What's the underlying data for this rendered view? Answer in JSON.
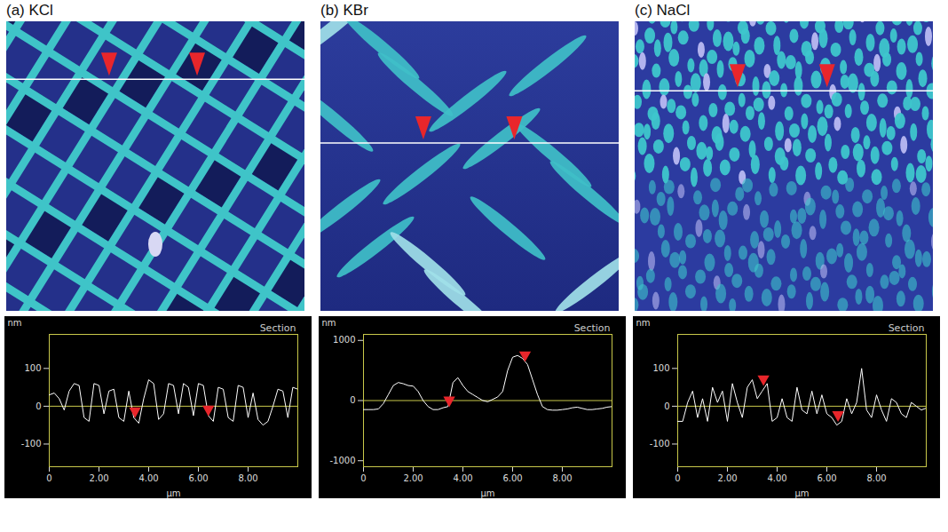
{
  "chart_data": [
    {
      "type": "line",
      "title": "(a) KCl",
      "subtitle": "Section",
      "x_label": "µm",
      "y_label": "nm",
      "x": [
        0,
        0.2,
        0.4,
        0.6,
        0.8,
        1.0,
        1.2,
        1.4,
        1.6,
        1.8,
        2.0,
        2.2,
        2.4,
        2.6,
        2.8,
        3.0,
        3.2,
        3.4,
        3.6,
        3.8,
        4.0,
        4.2,
        4.4,
        4.6,
        4.8,
        5.0,
        5.2,
        5.4,
        5.6,
        5.8,
        6.0,
        6.2,
        6.4,
        6.6,
        6.8,
        7.0,
        7.2,
        7.4,
        7.6,
        7.8,
        8.0,
        8.2,
        8.4,
        8.6,
        8.8,
        9.0,
        9.2,
        9.4,
        9.6,
        9.8,
        10.0
      ],
      "series": [
        {
          "color": "#ffffff",
          "values": [
            30,
            35,
            20,
            -10,
            40,
            60,
            55,
            -30,
            -40,
            60,
            55,
            -20,
            40,
            45,
            -30,
            -40,
            40,
            -30,
            -45,
            20,
            70,
            60,
            -35,
            -20,
            60,
            55,
            -20,
            60,
            50,
            -25,
            60,
            55,
            -25,
            -40,
            50,
            45,
            -30,
            -40,
            55,
            50,
            -30,
            35,
            -35,
            -50,
            -40,
            0,
            45,
            40,
            -30,
            50,
            45
          ]
        }
      ],
      "xlim": [
        0,
        10
      ],
      "xticks": [
        0,
        {
          "value": 2,
          "label": "2.00"
        },
        {
          "value": 4,
          "label": "4.00"
        },
        {
          "value": 6,
          "label": "6.00"
        },
        {
          "value": 8,
          "label": "8.00"
        }
      ],
      "ylim": [
        -160,
        190
      ],
      "yticks": [
        -100,
        0,
        100
      ],
      "reference_line": 0,
      "grid": false,
      "cursors": {
        "x": [
          3.45,
          6.4
        ],
        "y": [
          -30,
          -25
        ],
        "color": "#e8262b"
      }
    },
    {
      "type": "line",
      "title": "(b) KBr",
      "subtitle": "Section",
      "x_label": "µm",
      "y_label": "nm",
      "x": [
        0,
        0.2,
        0.4,
        0.6,
        0.8,
        1.0,
        1.2,
        1.4,
        1.6,
        1.8,
        2.0,
        2.2,
        2.4,
        2.6,
        2.8,
        3.0,
        3.2,
        3.4,
        3.6,
        3.8,
        4.0,
        4.2,
        4.4,
        4.6,
        4.8,
        5.0,
        5.2,
        5.4,
        5.6,
        5.8,
        6.0,
        6.2,
        6.4,
        6.6,
        6.8,
        7.0,
        7.2,
        7.4,
        7.6,
        7.8,
        8.0,
        8.2,
        8.4,
        8.6,
        8.8,
        9.0,
        9.2,
        9.4,
        9.6,
        9.8,
        10.0
      ],
      "series": [
        {
          "color": "#ffffff",
          "values": [
            -150,
            -150,
            -150,
            -140,
            -50,
            100,
            250,
            300,
            280,
            250,
            240,
            150,
            0,
            -100,
            -150,
            -150,
            -120,
            -100,
            300,
            380,
            250,
            150,
            100,
            50,
            0,
            -20,
            20,
            60,
            150,
            500,
            720,
            750,
            700,
            600,
            350,
            100,
            -100,
            -150,
            -160,
            -160,
            -150,
            -140,
            -120,
            -110,
            -130,
            -150,
            -150,
            -140,
            -130,
            -110,
            -100
          ]
        }
      ],
      "xlim": [
        0,
        10
      ],
      "xticks": [
        0,
        {
          "value": 2,
          "label": "2.00"
        },
        {
          "value": 4,
          "label": "4.00"
        },
        {
          "value": 6,
          "label": "6.00"
        },
        {
          "value": 8,
          "label": "8.00"
        }
      ],
      "ylim": [
        -1100,
        1100
      ],
      "yticks": [
        -1000,
        0,
        1000
      ],
      "reference_line": 0,
      "grid": false,
      "cursors": {
        "x": [
          3.45,
          6.5
        ],
        "y": [
          -100,
          650
        ],
        "color": "#e8262b"
      }
    },
    {
      "type": "line",
      "title": "(c) NaCl",
      "subtitle": "Section",
      "x_label": "µm",
      "y_label": "nm",
      "x": [
        0,
        0.2,
        0.4,
        0.6,
        0.8,
        1.0,
        1.2,
        1.4,
        1.6,
        1.8,
        2.0,
        2.2,
        2.4,
        2.6,
        2.8,
        3.0,
        3.2,
        3.4,
        3.6,
        3.8,
        4.0,
        4.2,
        4.4,
        4.6,
        4.8,
        5.0,
        5.2,
        5.4,
        5.6,
        5.8,
        6.0,
        6.2,
        6.4,
        6.6,
        6.8,
        7.0,
        7.2,
        7.4,
        7.6,
        7.8,
        8.0,
        8.2,
        8.4,
        8.6,
        8.8,
        9.0,
        9.2,
        9.4,
        9.6,
        9.8,
        10.0
      ],
      "series": [
        {
          "color": "#ffffff",
          "values": [
            -40,
            -40,
            10,
            40,
            -30,
            20,
            -40,
            50,
            10,
            40,
            -40,
            60,
            10,
            -30,
            50,
            70,
            20,
            40,
            60,
            -40,
            -30,
            20,
            -30,
            -40,
            50,
            -10,
            -20,
            40,
            -20,
            30,
            -20,
            -30,
            -50,
            -40,
            20,
            -20,
            10,
            100,
            -10,
            -30,
            30,
            -10,
            -40,
            20,
            10,
            -20,
            -30,
            10,
            0,
            -10,
            -5
          ]
        }
      ],
      "xlim": [
        0,
        10
      ],
      "xticks": [
        0,
        {
          "value": 2,
          "label": "2.00"
        },
        {
          "value": 4,
          "label": "4.00"
        },
        {
          "value": 6,
          "label": "6.00"
        },
        {
          "value": 8,
          "label": "8.00"
        }
      ],
      "ylim": [
        -160,
        190
      ],
      "yticks": [
        -100,
        0,
        100
      ],
      "reference_line": 0,
      "grid": false,
      "cursors": {
        "x": [
          3.45,
          6.45
        ],
        "y": [
          55,
          -40
        ],
        "color": "#e8262b"
      }
    }
  ]
}
